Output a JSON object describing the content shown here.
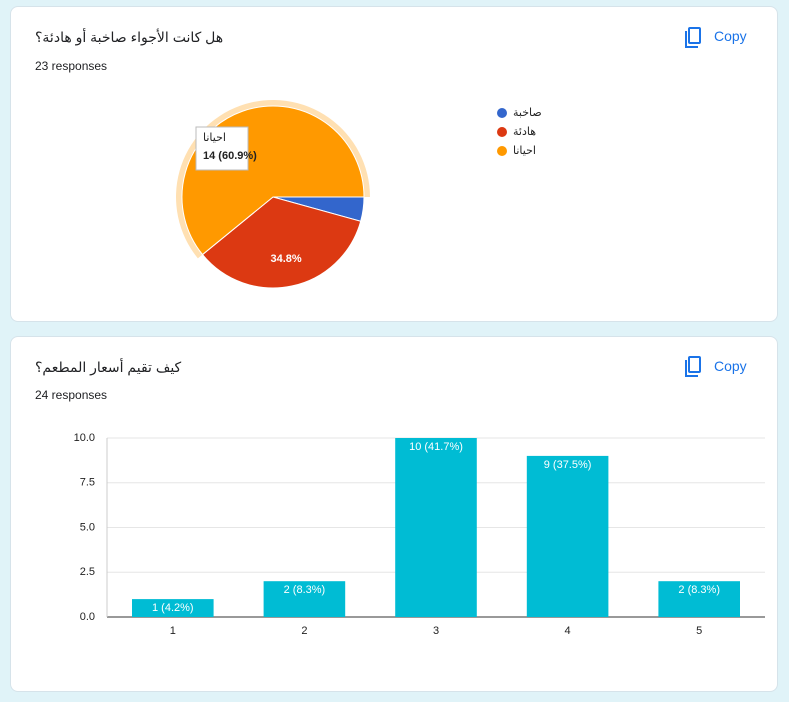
{
  "cards": [
    {
      "responses": "23 responses",
      "copy": "Copy"
    },
    {
      "responses": "24 responses",
      "copy": "Copy"
    }
  ],
  "chart_data": [
    {
      "type": "pie",
      "title": "هل كانت الأجواء صاخبة أو هادئة؟",
      "categories": [
        "صاخبة",
        "هادئة",
        "احيانا"
      ],
      "values": [
        4.3,
        34.8,
        60.9
      ],
      "value_labels": [
        null,
        "34.8%",
        null
      ],
      "colors": [
        "#3366cc",
        "#dc3912",
        "#ff9900"
      ],
      "tooltip": {
        "label": "احيانا",
        "text": "14 (60.9%)"
      },
      "legend": "right"
    },
    {
      "type": "bar",
      "title": "كيف تقيم أسعار المطعم؟",
      "categories": [
        "1",
        "2",
        "3",
        "4",
        "5"
      ],
      "values": [
        1,
        2,
        10,
        9,
        2
      ],
      "value_labels": [
        "1 (4.2%)",
        "2 (8.3%)",
        "10 (41.7%)",
        "9 (37.5%)",
        "2 (8.3%)"
      ],
      "color": "#00bcd4",
      "ylim": [
        0,
        10
      ],
      "yticks": [
        {
          "value": 0,
          "label": "0.0"
        },
        2.5,
        {
          "value": 5,
          "label": "5.0"
        },
        7.5,
        {
          "value": 10,
          "label": "10.0"
        }
      ],
      "grid": true
    }
  ]
}
